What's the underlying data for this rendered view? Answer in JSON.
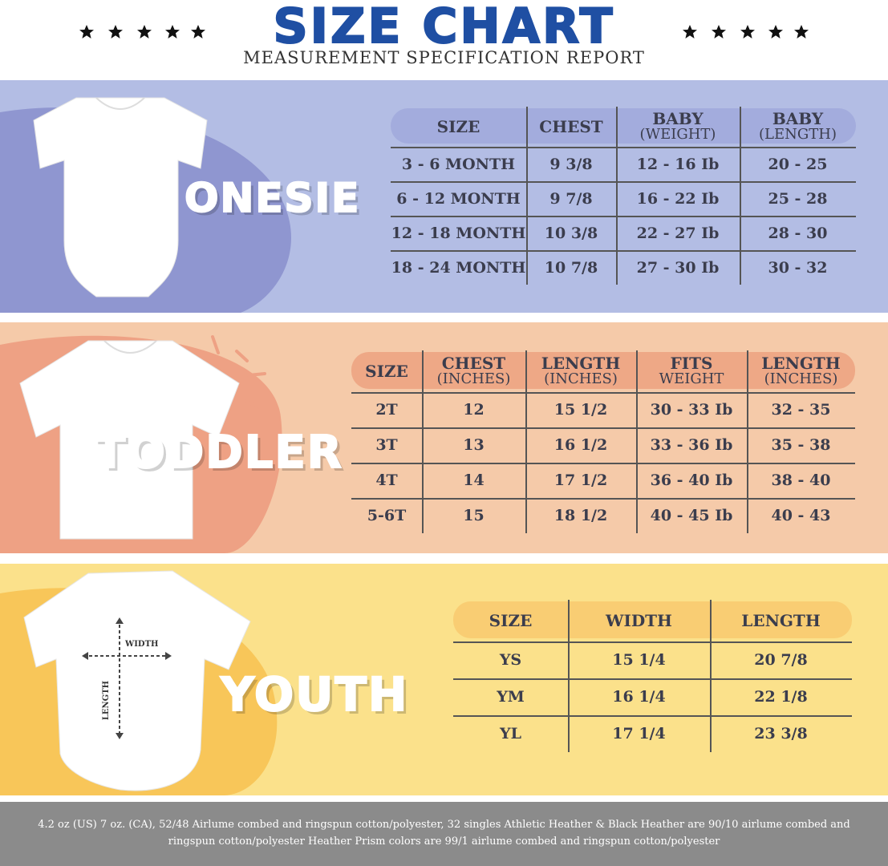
{
  "header": {
    "title": "SIZE CHART",
    "subtitle": "MEASUREMENT SPECIFICATION REPORT"
  },
  "sections": [
    {
      "label": "ONESIE",
      "table": {
        "header": [
          [
            "SIZE"
          ],
          [
            "CHEST"
          ],
          [
            "BABY",
            "(WEIGHT)"
          ],
          [
            "BABY",
            "(LENGTH)"
          ]
        ],
        "rows": [
          [
            "3 - 6 MONTH",
            "9 3/8",
            "12 - 16 Ib",
            "20 - 25"
          ],
          [
            "6 - 12 MONTH",
            "9 7/8",
            "16 - 22 Ib",
            "25 - 28"
          ],
          [
            "12 - 18  MONTH",
            "10 3/8",
            "22 - 27 Ib",
            "28 - 30"
          ],
          [
            "18 - 24 MONTH",
            "10 7/8",
            "27 - 30 Ib",
            "30 - 32"
          ]
        ]
      }
    },
    {
      "label": "TODDLER",
      "table": {
        "header": [
          [
            "SIZE"
          ],
          [
            "CHEST",
            "(INCHES)"
          ],
          [
            "LENGTH",
            "(INCHES)"
          ],
          [
            "FITS",
            "WEIGHT"
          ],
          [
            "LENGTH",
            "(INCHES)"
          ]
        ],
        "rows": [
          [
            "2T",
            "12",
            "15 1/2",
            "30 - 33 Ib",
            "32 - 35"
          ],
          [
            "3T",
            "13",
            "16 1/2",
            "33 - 36 Ib",
            "35 - 38"
          ],
          [
            "4T",
            "14",
            "17 1/2",
            "36 - 40 Ib",
            "38 - 40"
          ],
          [
            "5-6T",
            "15",
            "18 1/2",
            "40 - 45 Ib",
            "40 - 43"
          ]
        ]
      }
    },
    {
      "label": "YOUTH",
      "image_labels": {
        "width": "WIDTH",
        "length": "LENGTH"
      },
      "table": {
        "header": [
          [
            "SIZE"
          ],
          [
            "WIDTH"
          ],
          [
            "LENGTH"
          ]
        ],
        "rows": [
          [
            "YS",
            "15 1/4",
            "20 7/8"
          ],
          [
            "YM",
            "16 1/4",
            "22 1/8"
          ],
          [
            "YL",
            "17 1/4",
            "23 3/8"
          ]
        ]
      }
    }
  ],
  "footer": "4.2 oz (US) 7 oz. (CA), 52/48 Airlume combed and ringspun cotton/polyester, 32 singles Athletic Heather & Black Heather are 90/10 airlume combed and ringspun cotton/polyester Heather Prism colors are 99/1 airlume combed and ringspun cotton/polyester"
}
